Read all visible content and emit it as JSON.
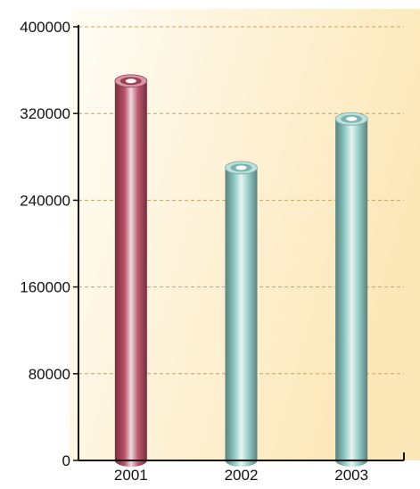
{
  "chart_data": {
    "type": "bar",
    "categories": [
      "2001",
      "2002",
      "2003"
    ],
    "values": [
      350000,
      270000,
      315000
    ],
    "ylim": [
      0,
      400000
    ],
    "yticks": [
      0,
      80000,
      160000,
      240000,
      320000,
      400000
    ],
    "ytick_labels": [
      "0",
      "80000",
      "160000",
      "240000",
      "320000",
      "400000"
    ],
    "grid": true,
    "legend": "none",
    "bar_style": "cylinder",
    "colors": {
      "bars": [
        "#b5475f",
        "#8ac8c2",
        "#8ac8c2"
      ],
      "grid": "#c8a066",
      "background_light": "#fffdf6",
      "background_dark": "#fce7b8",
      "axis": "#111111"
    }
  }
}
